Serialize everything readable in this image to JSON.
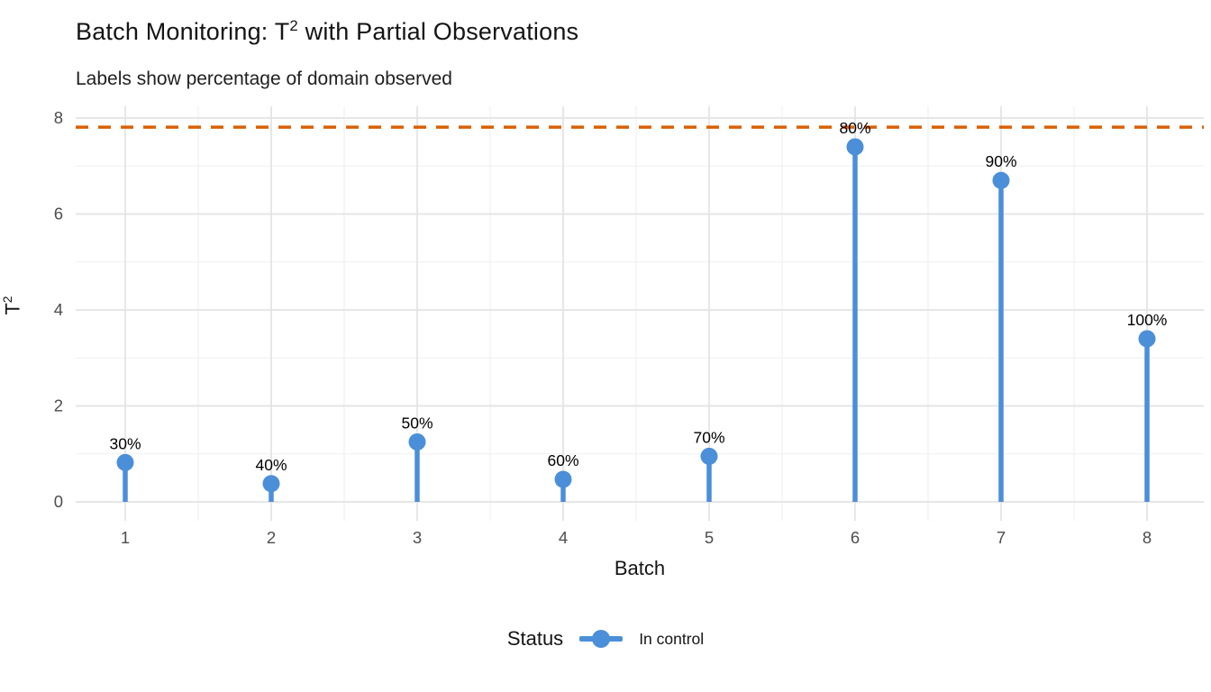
{
  "figure": {
    "title_prefix": "Batch Monitoring: T",
    "title_sup": "2",
    "title_suffix": " with Partial Observations",
    "subtitle": "Labels show percentage of domain observed",
    "x_axis_title": "Batch",
    "y_axis_title_base": "T",
    "y_axis_title_sup": "2",
    "legend_title": "Status",
    "legend_item_label": "In control"
  },
  "chart_data": {
    "type": "lollipop",
    "title": "Batch Monitoring: T² with Partial Observations",
    "subtitle": "Labels show percentage of domain observed",
    "xlabel": "Batch",
    "ylabel": "T²",
    "categories": [
      1,
      2,
      3,
      4,
      5,
      6,
      7,
      8
    ],
    "series": [
      {
        "name": "In control",
        "color": "#4B8FD9",
        "values": [
          0.82,
          0.38,
          1.25,
          0.47,
          0.95,
          7.4,
          6.7,
          3.4
        ]
      }
    ],
    "point_labels": [
      "30%",
      "40%",
      "50%",
      "60%",
      "70%",
      "80%",
      "90%",
      "100%"
    ],
    "threshold_line": {
      "value": 7.81,
      "style": "dashed",
      "color": "#D96002"
    },
    "ylim": [
      -0.4,
      8.25
    ],
    "yticks": [
      0,
      2,
      4,
      6,
      8
    ],
    "yticks_minor": [
      1,
      3,
      5,
      7
    ],
    "grid": "on",
    "legend_position": "bottom",
    "legend_title": "Status"
  },
  "colors": {
    "point_blue": "#4B8FD9",
    "threshold_orange": "#D96002",
    "grid_major": "#E3E3E3",
    "grid_minor": "#EFEFEF",
    "tick_text": "#4D4D4D",
    "label_text": "#000000",
    "background": "#FFFFFF"
  }
}
